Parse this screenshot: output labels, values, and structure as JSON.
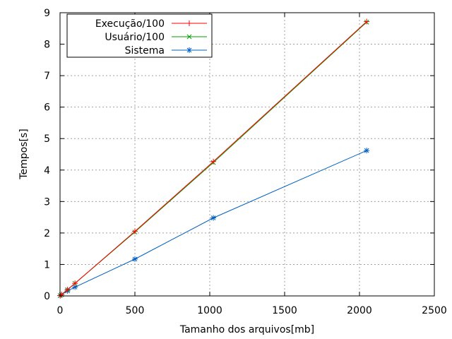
{
  "chart_data": {
    "type": "line",
    "xlabel": "Tamanho dos arquivos[mb]",
    "ylabel": "Tempos[s]",
    "xlim": [
      0,
      2500
    ],
    "ylim": [
      0,
      9
    ],
    "xticks": [
      0,
      500,
      1000,
      1500,
      2000,
      2500
    ],
    "yticks": [
      0,
      1,
      2,
      3,
      4,
      5,
      6,
      7,
      8,
      9
    ],
    "grid": true,
    "legend_position": "top-left",
    "series": [
      {
        "name": "Execução/100",
        "color": "#ff0000",
        "marker": "plus",
        "x": [
          1,
          10,
          50,
          100,
          500,
          1024,
          2048
        ],
        "y": [
          0.01,
          0.04,
          0.2,
          0.4,
          2.05,
          4.27,
          8.72
        ]
      },
      {
        "name": "Usuário/100",
        "color": "#00a000",
        "marker": "cross",
        "x": [
          1,
          10,
          50,
          100,
          500,
          1024,
          2048
        ],
        "y": [
          0.01,
          0.04,
          0.2,
          0.4,
          2.03,
          4.24,
          8.7
        ]
      },
      {
        "name": "Sistema",
        "color": "#0060c0",
        "marker": "star",
        "x": [
          1,
          10,
          50,
          100,
          500,
          1024,
          2048
        ],
        "y": [
          0.01,
          0.04,
          0.16,
          0.28,
          1.17,
          2.48,
          4.62
        ]
      }
    ]
  }
}
